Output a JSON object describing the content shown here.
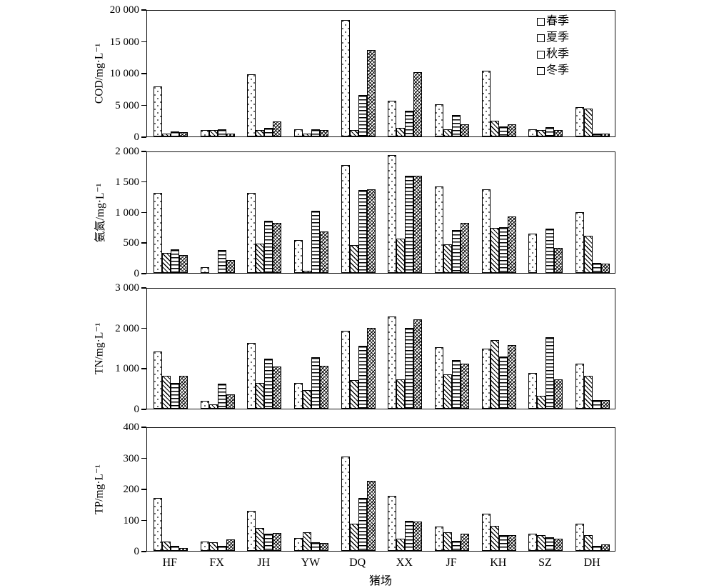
{
  "chart_data": {
    "type": "bar",
    "title": "",
    "xlabel": "猪场",
    "categories": [
      "HF",
      "FX",
      "JH",
      "YW",
      "DQ",
      "XX",
      "JF",
      "KH",
      "SZ",
      "DH"
    ],
    "legend": {
      "position": "top-right-inside-first-panel",
      "items": [
        "春季",
        "夏季",
        "秋季",
        "冬季"
      ]
    },
    "panels": [
      {
        "ylabel": "COD/mg·L⁻¹",
        "ylim": [
          0,
          20000
        ],
        "yticks": [
          0,
          5000,
          10000,
          15000,
          20000
        ],
        "ytick_labels": [
          "0",
          "5 000",
          "10 000",
          "15 000",
          "20 000"
        ],
        "series": [
          {
            "name": "春季",
            "values": [
              7900,
              1000,
              9900,
              1100,
              18500,
              5700,
              5100,
              10400,
              1150,
              4650
            ]
          },
          {
            "name": "夏季",
            "values": [
              450,
              1000,
              1000,
              400,
              1000,
              1400,
              1150,
              2450,
              1000,
              4450
            ]
          },
          {
            "name": "秋季",
            "values": [
              850,
              1150,
              1350,
              1150,
              6600,
              4100,
              3400,
              1600,
              1500,
              400
            ]
          },
          {
            "name": "冬季",
            "values": [
              700,
              500,
              2350,
              1000,
              13700,
              10200,
              1900,
              1900,
              1050,
              500
            ]
          }
        ]
      },
      {
        "ylabel": "氨氮/mg·L⁻¹",
        "ylim": [
          0,
          2000
        ],
        "yticks": [
          0,
          500,
          1000,
          1500,
          2000
        ],
        "ytick_labels": [
          "0",
          "500",
          "1 000",
          "1 500",
          "2 000"
        ],
        "series": [
          {
            "name": "春季",
            "values": [
              1330,
              100,
              1330,
              540,
              1790,
              1950,
              1430,
              1380,
              650,
              1010
            ]
          },
          {
            "name": "夏季",
            "values": [
              330,
              0,
              480,
              30,
              460,
              570,
              470,
              740,
              0,
              610
            ]
          },
          {
            "name": "秋季",
            "values": [
              390,
              380,
              860,
              1030,
              1370,
              1610,
              710,
              760,
              730,
              170
            ]
          },
          {
            "name": "冬季",
            "values": [
              300,
              210,
              830,
              690,
              1390,
              1610,
              830,
              930,
              410,
              150
            ]
          }
        ]
      },
      {
        "ylabel": "TN/mg·L⁻¹",
        "ylim": [
          0,
          3000
        ],
        "yticks": [
          0,
          1000,
          2000,
          3000
        ],
        "ytick_labels": [
          "0",
          "1 000",
          "2 000",
          "3 000"
        ],
        "series": [
          {
            "name": "春季",
            "values": [
              1430,
              190,
              1650,
              650,
              1950,
              2310,
              1530,
              1500,
              900,
              1120
            ]
          },
          {
            "name": "夏季",
            "values": [
              820,
              100,
              650,
              460,
              710,
              740,
              850,
              1710,
              330,
              820
            ]
          },
          {
            "name": "秋季",
            "values": [
              650,
              620,
              1250,
              1280,
              1570,
              2010,
              1210,
              1310,
              1780,
              210
            ]
          },
          {
            "name": "冬季",
            "values": [
              820,
              350,
              1050,
              1080,
              2020,
              2240,
              1120,
              1590,
              730,
              210
            ]
          }
        ]
      },
      {
        "ylabel": "TP/mg·L⁻¹",
        "ylim": [
          0,
          400
        ],
        "yticks": [
          0,
          100,
          200,
          300,
          400
        ],
        "ytick_labels": [
          "0",
          "100",
          "200",
          "300",
          "400"
        ],
        "series": [
          {
            "name": "春季",
            "values": [
              172,
              30,
              130,
              41,
              306,
              178,
              80,
              120,
              57,
              88
            ]
          },
          {
            "name": "夏季",
            "values": [
              30,
              28,
              75,
              61,
              88,
              39,
              60,
              81,
              51,
              51
            ]
          },
          {
            "name": "秋季",
            "values": [
              17,
              17,
              55,
              27,
              172,
              98,
              32,
              51,
              44,
              16
            ]
          },
          {
            "name": "冬季",
            "values": [
              9,
              37,
              59,
              26,
              228,
              95,
              56,
              51,
              40,
              21
            ]
          }
        ]
      }
    ],
    "style": {
      "bar_patterns": [
        "dots",
        "diagonal-hatch",
        "horizontal-lines",
        "cross-hatch"
      ],
      "bar_fill": "#ffffff",
      "bar_edge": "#000000",
      "grid": false
    }
  }
}
